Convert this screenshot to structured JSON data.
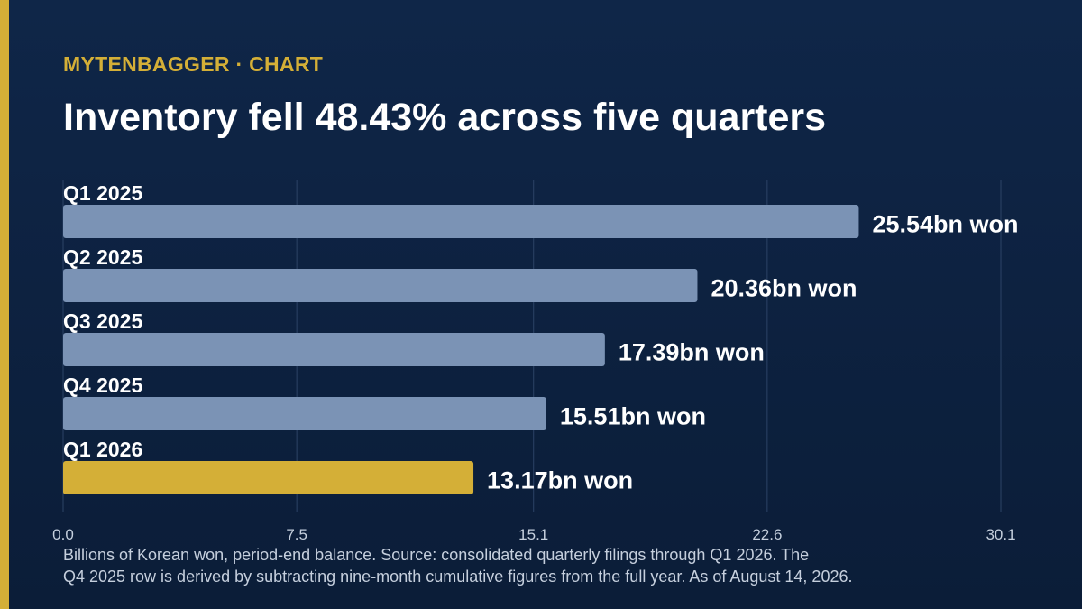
{
  "header": {
    "kicker": "MYTENBAGGER · CHART",
    "title": "Inventory fell 48.43% across five quarters"
  },
  "colors": {
    "background": "#0f2648",
    "accent": "#d4af37",
    "bar_default": "#7b93b5",
    "bar_highlight": "#d4af37",
    "gridline": "#2c4366",
    "text": "#ffffff",
    "axis_text": "#c5cfdd"
  },
  "chart_data": {
    "type": "bar",
    "orientation": "horizontal",
    "categories": [
      "Q1 2025",
      "Q2 2025",
      "Q3 2025",
      "Q4 2025",
      "Q1 2026"
    ],
    "values": [
      25.54,
      20.36,
      17.39,
      15.51,
      13.17
    ],
    "value_labels": [
      "25.54bn won",
      "20.36bn won",
      "17.39bn won",
      "15.51bn won",
      "13.17bn won"
    ],
    "highlight_index": 4,
    "xlim": [
      0,
      30.1
    ],
    "x_ticks": [
      0,
      7.5,
      15.1,
      22.6,
      30.1
    ],
    "x_tick_labels": [
      "0.0",
      "7.5",
      "15.1",
      "22.6",
      "30.1"
    ],
    "grid": true,
    "xlabel": "",
    "ylabel": ""
  },
  "footnote": {
    "line1": "Billions of Korean won, period-end balance. Source: consolidated quarterly filings through Q1 2026. The",
    "line2": "Q4 2025 row is derived by subtracting nine-month cumulative figures from the full year. As of August 14, 2026."
  }
}
